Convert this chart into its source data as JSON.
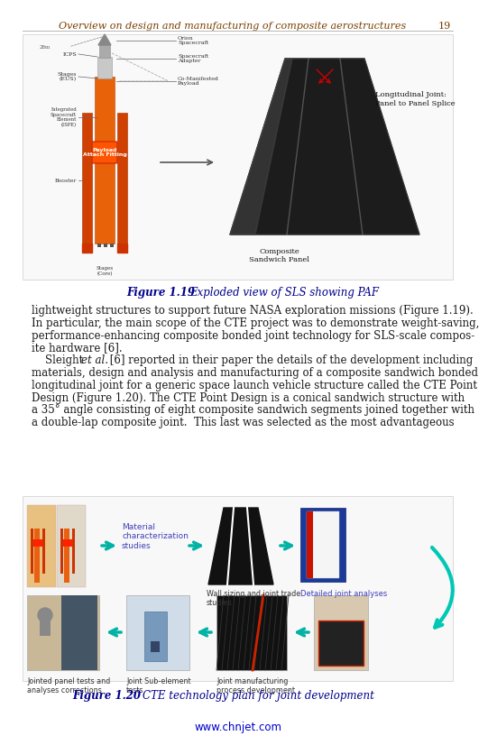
{
  "header_italic": "Overview on design and manufacturing of composite aerostructures",
  "header_page": "19",
  "fig119_caption_bold": "Figure 1.19",
  "fig119_caption_italic": "Exploded view of SLS showing PAF",
  "body_text_lines": [
    "lightweight structures to support future NASA exploration missions (Figure 1.19).",
    "In particular, the main scope of the CTE project was to demonstrate weight-saving,",
    "performance-enhancing composite bonded joint technology for SLS-scale compos-",
    "ite hardware [6].",
    "    Sleight ",
    " et al.",
    " [6] reported in their paper the details of the development including",
    "materials, design and analysis and manufacturing of a composite sandwich bonded",
    "longitudinal joint for a generic space launch vehicle structure called the CTE Point",
    "Design (Figure 1.20). The CTE Point Design is a conical sandwich structure with",
    "a 35° angle consisting of eight composite sandwich segments joined together with",
    "a double-lap composite joint.  This last was selected as the most advantageous"
  ],
  "fig120_caption_bold": "Figure 1.20",
  "fig120_caption_italic": "CTE technology plan for joint development",
  "footer_url": "www.chnjet.com",
  "bg_color": "#ffffff",
  "header_text_color": "#7b3f00",
  "header_line_color": "#aaaaaa",
  "body_color": "#1a1a1a",
  "fig_caption_color": "#00008b",
  "url_color": "#0000cc",
  "arrow_color": "#00b3a4",
  "label_blue_color": "#4040bb"
}
